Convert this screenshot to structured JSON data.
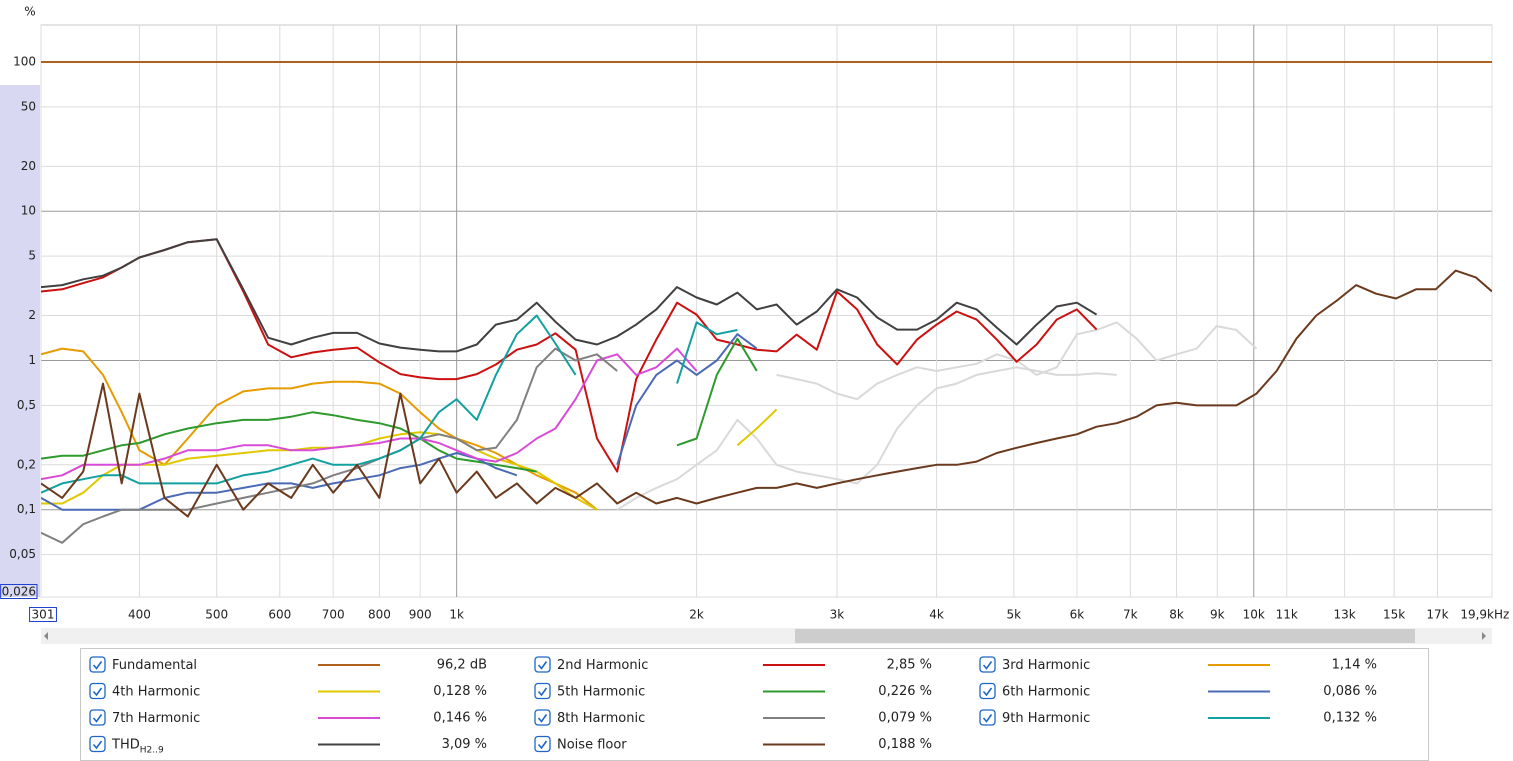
{
  "chart_data": {
    "type": "line",
    "y_unit": "%",
    "x_unit": "Hz",
    "xscale": "log",
    "yscale": "log",
    "grid": true,
    "xlim": [
      301,
      19900
    ],
    "ylim": [
      0.026,
      177
    ],
    "xticks": [
      301,
      400,
      500,
      600,
      700,
      800,
      900,
      {
        "value": 1000,
        "label": "1k"
      },
      {
        "value": 2000,
        "label": "2k"
      },
      {
        "value": 3000,
        "label": "3k"
      },
      {
        "value": 4000,
        "label": "4k"
      },
      {
        "value": 5000,
        "label": "5k"
      },
      {
        "value": 6000,
        "label": "6k"
      },
      {
        "value": 7000,
        "label": "7k"
      },
      {
        "value": 8000,
        "label": "8k"
      },
      {
        "value": 9000,
        "label": "9k"
      },
      {
        "value": 10000,
        "label": "10k"
      },
      {
        "value": 11000,
        "label": "11k"
      },
      {
        "value": 13000,
        "label": "13k"
      },
      {
        "value": 15000,
        "label": "15k"
      },
      {
        "value": 17000,
        "label": "17k"
      },
      {
        "value": 19900,
        "label": "19,9k"
      }
    ],
    "yticks": [
      100,
      50,
      20,
      10,
      5,
      2,
      1,
      {
        "value": 0.5,
        "label": "0,5"
      },
      {
        "value": 0.2,
        "label": "0,2"
      },
      {
        "value": 0.1,
        "label": "0,1"
      },
      {
        "value": 0.05,
        "label": "0,05"
      },
      {
        "value": 0.026,
        "label": "0,026"
      }
    ],
    "x": [
      301,
      320,
      340,
      360,
      380,
      400,
      430,
      460,
      500,
      540,
      580,
      620,
      660,
      700,
      750,
      800,
      850,
      900,
      950,
      1000,
      1060,
      1120,
      1190,
      1260,
      1330,
      1410,
      1500,
      1590,
      1680,
      1780,
      1890,
      2000,
      2120,
      2250,
      2380,
      2520,
      2670,
      2830,
      3000,
      3180,
      3370,
      3570,
      3780,
      4000,
      4240,
      4490,
      4760,
      5040,
      5340,
      5660,
      6000,
      6350,
      6730,
      7130,
      7550,
      8000,
      8480,
      8980,
      9510,
      10080,
      10680,
      11310,
      11980,
      12690,
      13440,
      14240,
      15080,
      15980,
      16920,
      17920,
      18990,
      19900
    ],
    "faded_series": [
      {
        "color": "#d9d9d9",
        "values": [
          null,
          null,
          null,
          null,
          null,
          null,
          null,
          null,
          null,
          null,
          null,
          null,
          null,
          null,
          null,
          null,
          null,
          null,
          null,
          null,
          null,
          null,
          null,
          null,
          null,
          null,
          null,
          null,
          null,
          null,
          null,
          null,
          null,
          null,
          null,
          0.8,
          0.75,
          0.7,
          0.6,
          0.55,
          0.7,
          0.8,
          0.9,
          0.85,
          0.9,
          0.95,
          1.1,
          1.0,
          0.8,
          0.9,
          1.5,
          1.6,
          1.8,
          1.4,
          1.0,
          1.1,
          1.2,
          1.7,
          1.6,
          1.2,
          null,
          null,
          null,
          null,
          null,
          null,
          null,
          null,
          null,
          null,
          null,
          null
        ]
      },
      {
        "color": "#d9d9d9",
        "values": [
          null,
          null,
          null,
          null,
          null,
          null,
          null,
          null,
          null,
          null,
          null,
          null,
          null,
          null,
          null,
          null,
          null,
          null,
          null,
          null,
          null,
          null,
          null,
          null,
          null,
          null,
          null,
          0.1,
          0.12,
          0.14,
          0.16,
          0.2,
          0.25,
          0.4,
          0.3,
          0.2,
          0.18,
          0.17,
          0.16,
          0.15,
          0.2,
          0.35,
          0.5,
          0.65,
          0.7,
          0.8,
          0.85,
          0.9,
          0.85,
          0.8,
          0.8,
          0.82,
          0.8,
          null,
          null,
          null,
          null,
          null,
          null,
          null,
          null,
          null,
          null,
          null,
          null,
          null,
          null,
          null,
          null,
          null,
          null
        ]
      }
    ],
    "series": [
      {
        "name": "Fundamental",
        "color": "#b0601e",
        "readout": "96,2 dB",
        "values": [
          100,
          100,
          100,
          100,
          100,
          100,
          100,
          100,
          100,
          100,
          100,
          100,
          100,
          100,
          100,
          100,
          100,
          100,
          100,
          100,
          100,
          100,
          100,
          100,
          100,
          100,
          100,
          100,
          100,
          100,
          100,
          100,
          100,
          100,
          100,
          100,
          100,
          100,
          100,
          100,
          100,
          100,
          100,
          100,
          100,
          100,
          100,
          100,
          100,
          100,
          100,
          100,
          100,
          100,
          100,
          100,
          100,
          100,
          100,
          100,
          100,
          100,
          100,
          100,
          100,
          100,
          100,
          100,
          100,
          100,
          100,
          100
        ]
      },
      {
        "name": "2nd Harmonic",
        "color": "#cc1010",
        "readout": "2,85 %",
        "values": [
          2.9,
          3.0,
          3.3,
          3.6,
          4.2,
          4.9,
          5.5,
          6.2,
          6.5,
          2.9,
          1.28,
          1.05,
          1.13,
          1.18,
          1.22,
          0.97,
          0.81,
          0.77,
          0.75,
          0.75,
          0.81,
          0.94,
          1.18,
          1.28,
          1.52,
          1.18,
          0.3,
          0.18,
          0.75,
          1.38,
          2.44,
          2.03,
          1.38,
          1.28,
          1.18,
          1.15,
          1.49,
          1.18,
          2.9,
          2.2,
          1.28,
          0.94,
          1.38,
          1.74,
          2.13,
          1.88,
          1.38,
          0.98,
          1.28,
          1.88,
          2.2,
          1.61,
          null,
          null,
          null,
          null,
          null,
          null,
          null,
          null,
          null,
          null,
          null,
          null,
          null,
          null,
          null,
          null,
          null,
          null,
          null,
          null
        ]
      },
      {
        "name": "3rd Harmonic",
        "color": "#e69b00",
        "readout": "1,14 %",
        "values": [
          1.1,
          1.2,
          1.15,
          0.8,
          0.45,
          0.25,
          0.2,
          0.3,
          0.5,
          0.62,
          0.65,
          0.65,
          0.7,
          0.72,
          0.72,
          0.7,
          0.6,
          0.45,
          0.35,
          0.3,
          0.27,
          0.24,
          0.2,
          0.17,
          0.15,
          0.13,
          0.1,
          null,
          null,
          null,
          null,
          null,
          null,
          null,
          null,
          null,
          null,
          null,
          null,
          null,
          null,
          null,
          null,
          null,
          null,
          null,
          null,
          null,
          null,
          null,
          null,
          null,
          null,
          null,
          null,
          null,
          null,
          null,
          null,
          null,
          null,
          null,
          null,
          null,
          null,
          null,
          null,
          null,
          null,
          null,
          null,
          null
        ]
      },
      {
        "name": "4th Harmonic",
        "color": "#e0c800",
        "readout": "0,128 %",
        "values": [
          0.11,
          0.11,
          0.13,
          0.17,
          0.2,
          0.2,
          0.2,
          0.22,
          0.23,
          0.24,
          0.25,
          0.25,
          0.26,
          0.26,
          0.27,
          0.3,
          0.32,
          0.33,
          0.32,
          0.3,
          0.25,
          0.22,
          0.2,
          0.18,
          0.15,
          0.12,
          0.1,
          null,
          null,
          null,
          null,
          null,
          null,
          0.27,
          0.35,
          0.47,
          null,
          null,
          null,
          null,
          null,
          null,
          null,
          null,
          null,
          null,
          null,
          null,
          null,
          null,
          null,
          null,
          null,
          null,
          null,
          null,
          null,
          null,
          null,
          null,
          null,
          null,
          null,
          null,
          null,
          null,
          null,
          null,
          null,
          null,
          null,
          null
        ]
      },
      {
        "name": "5th Harmonic",
        "color": "#2e9a2e",
        "readout": "0,226 %",
        "values": [
          0.22,
          0.23,
          0.23,
          0.25,
          0.27,
          0.28,
          0.32,
          0.35,
          0.38,
          0.4,
          0.4,
          0.42,
          0.45,
          0.43,
          0.4,
          0.38,
          0.35,
          0.3,
          0.25,
          0.22,
          0.21,
          0.2,
          0.19,
          0.18,
          null,
          null,
          null,
          null,
          null,
          null,
          0.27,
          0.3,
          0.8,
          1.4,
          0.85,
          null,
          null,
          null,
          null,
          null,
          null,
          null,
          null,
          null,
          null,
          null,
          null,
          null,
          null,
          null,
          null,
          null,
          null,
          null,
          null,
          null,
          null,
          null,
          null,
          null,
          null,
          null,
          null,
          null,
          null,
          null,
          null,
          null,
          null,
          null,
          null,
          null
        ]
      },
      {
        "name": "6th Harmonic",
        "color": "#4a6ab5",
        "readout": "0,086 %",
        "values": [
          0.12,
          0.1,
          0.1,
          0.1,
          0.1,
          0.1,
          0.12,
          0.13,
          0.13,
          0.14,
          0.15,
          0.15,
          0.14,
          0.15,
          0.16,
          0.17,
          0.19,
          0.2,
          0.22,
          0.24,
          0.22,
          0.19,
          0.17,
          null,
          null,
          null,
          null,
          0.2,
          0.5,
          0.8,
          1.0,
          0.8,
          1.0,
          1.5,
          1.2,
          null,
          null,
          null,
          null,
          null,
          null,
          null,
          null,
          null,
          null,
          null,
          null,
          null,
          null,
          null,
          null,
          null,
          null,
          null,
          null,
          null,
          null,
          null,
          null,
          null,
          null,
          null,
          null,
          null,
          null,
          null,
          null,
          null,
          null,
          null,
          null,
          null
        ]
      },
      {
        "name": "7th Harmonic",
        "color": "#d84bd8",
        "readout": "0,146 %",
        "values": [
          0.16,
          0.17,
          0.2,
          0.2,
          0.2,
          0.2,
          0.22,
          0.25,
          0.25,
          0.27,
          0.27,
          0.25,
          0.25,
          0.26,
          0.27,
          0.28,
          0.3,
          0.3,
          0.28,
          0.25,
          0.22,
          0.21,
          0.24,
          0.3,
          0.35,
          0.55,
          1.0,
          1.1,
          0.8,
          0.9,
          1.2,
          0.85,
          null,
          null,
          null,
          null,
          null,
          null,
          null,
          null,
          null,
          null,
          null,
          null,
          null,
          null,
          null,
          null,
          null,
          null,
          null,
          null,
          null,
          null,
          null,
          null,
          null,
          null,
          null,
          null,
          null,
          null,
          null,
          null,
          null,
          null,
          null,
          null,
          null,
          null,
          null,
          null
        ]
      },
      {
        "name": "8th Harmonic",
        "color": "#808080",
        "readout": "0,079 %",
        "values": [
          0.07,
          0.06,
          0.08,
          0.09,
          0.1,
          0.1,
          0.1,
          0.1,
          0.11,
          0.12,
          0.13,
          0.14,
          0.15,
          0.17,
          0.19,
          0.22,
          0.25,
          0.3,
          0.32,
          0.3,
          0.25,
          0.26,
          0.4,
          0.9,
          1.2,
          1.0,
          1.1,
          0.85,
          null,
          null,
          null,
          null,
          null,
          null,
          null,
          null,
          null,
          null,
          null,
          null,
          null,
          null,
          null,
          null,
          null,
          null,
          null,
          null,
          null,
          null,
          null,
          null,
          null,
          null,
          null,
          null,
          null,
          null,
          null,
          null,
          null,
          null,
          null,
          null,
          null,
          null,
          null,
          null,
          null,
          null,
          null,
          null
        ]
      },
      {
        "name": "9th Harmonic",
        "color": "#12a0a0",
        "readout": "0,132 %",
        "values": [
          0.13,
          0.15,
          0.16,
          0.17,
          0.17,
          0.15,
          0.15,
          0.15,
          0.15,
          0.17,
          0.18,
          0.2,
          0.22,
          0.2,
          0.2,
          0.22,
          0.25,
          0.3,
          0.45,
          0.55,
          0.4,
          0.8,
          1.5,
          2.0,
          1.3,
          0.8,
          null,
          null,
          null,
          null,
          0.7,
          1.8,
          1.5,
          1.6,
          null,
          null,
          null,
          null,
          null,
          null,
          null,
          null,
          null,
          null,
          null,
          null,
          null,
          null,
          null,
          null,
          null,
          null,
          null,
          null,
          null,
          null,
          null,
          null,
          null,
          null,
          null,
          null,
          null,
          null,
          null,
          null,
          null,
          null,
          null,
          null,
          null,
          null
        ]
      },
      {
        "name": "THD",
        "name_sub": "H2..9",
        "color": "#404040",
        "readout": "3,09 %",
        "values": [
          3.1,
          3.2,
          3.5,
          3.7,
          4.2,
          4.9,
          5.5,
          6.2,
          6.5,
          3.0,
          1.42,
          1.28,
          1.42,
          1.53,
          1.53,
          1.3,
          1.22,
          1.18,
          1.15,
          1.15,
          1.28,
          1.74,
          1.88,
          2.44,
          1.82,
          1.38,
          1.28,
          1.45,
          1.74,
          2.2,
          3.1,
          2.64,
          2.37,
          2.85,
          2.2,
          2.37,
          1.74,
          2.13,
          3.0,
          2.64,
          1.94,
          1.61,
          1.61,
          1.88,
          2.44,
          2.2,
          1.66,
          1.28,
          1.74,
          2.3,
          2.44,
          2.03,
          null,
          null,
          null,
          null,
          null,
          null,
          null,
          null,
          null,
          null,
          null,
          null,
          null,
          null,
          null,
          null,
          null,
          null,
          null,
          null
        ]
      },
      {
        "name": "Noise floor",
        "color": "#6b3a1e",
        "readout": "0,188 %",
        "values": [
          0.15,
          0.12,
          0.18,
          0.7,
          0.15,
          0.6,
          0.12,
          0.09,
          0.2,
          0.1,
          0.15,
          0.12,
          0.2,
          0.13,
          0.2,
          0.12,
          0.6,
          0.15,
          0.22,
          0.13,
          0.18,
          0.12,
          0.15,
          0.11,
          0.14,
          0.12,
          0.15,
          0.11,
          0.13,
          0.11,
          0.12,
          0.11,
          0.12,
          0.13,
          0.14,
          0.14,
          0.15,
          0.14,
          0.15,
          0.16,
          0.17,
          0.18,
          0.19,
          0.2,
          0.2,
          0.21,
          0.24,
          0.26,
          0.28,
          0.3,
          0.32,
          0.36,
          0.38,
          0.42,
          0.5,
          0.52,
          0.5,
          0.5,
          0.5,
          0.6,
          0.85,
          1.4,
          2.0,
          2.5,
          3.2,
          2.8,
          2.6,
          3.0,
          3.0,
          4.0,
          3.6,
          2.9
        ]
      }
    ]
  }
}
